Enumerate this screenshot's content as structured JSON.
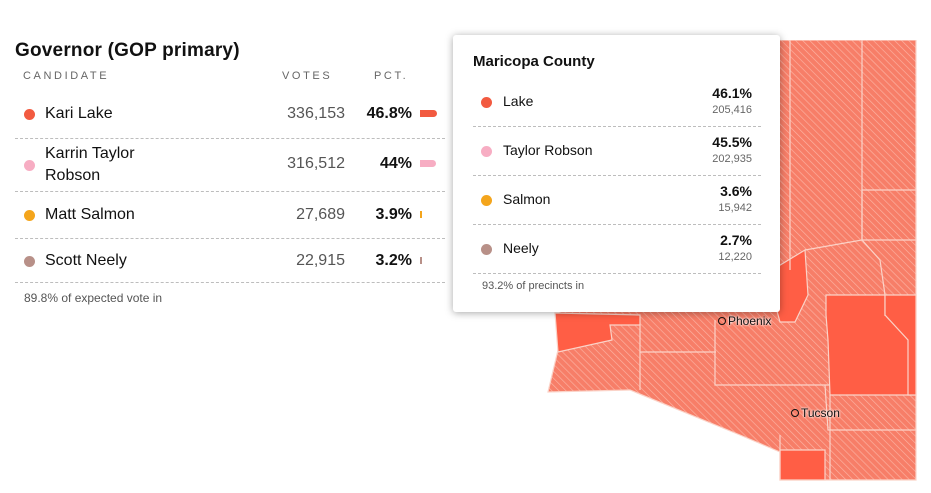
{
  "title": "Governor (GOP primary)",
  "headers": {
    "candidate": "CANDIDATE",
    "votes": "VOTES",
    "pct": "PCT."
  },
  "candidates": [
    {
      "name": "Kari Lake",
      "votes": "336,153",
      "pct": "46.8%",
      "pct_value": 46.8,
      "color": "#f25a40"
    },
    {
      "name": "Karrin Taylor Robson",
      "votes": "316,512",
      "pct": "44%",
      "pct_value": 44,
      "color": "#f7adc3"
    },
    {
      "name": "Matt Salmon",
      "votes": "27,689",
      "pct": "3.9%",
      "pct_value": 3.9,
      "color": "#f4a51c"
    },
    {
      "name": "Scott Neely",
      "votes": "22,915",
      "pct": "3.2%",
      "pct_value": 3.2,
      "color": "#b89088"
    }
  ],
  "footnote": "89.8% of expected vote in",
  "tooltip": {
    "county": "Maricopa County",
    "rows": [
      {
        "name": "Lake",
        "pct": "46.1%",
        "votes": "205,416",
        "color": "#f25a40"
      },
      {
        "name": "Taylor Robson",
        "pct": "45.5%",
        "votes": "202,935",
        "color": "#f7adc3"
      },
      {
        "name": "Salmon",
        "pct": "3.6%",
        "votes": "15,942",
        "color": "#f4a51c"
      },
      {
        "name": "Neely",
        "pct": "2.7%",
        "votes": "12,220",
        "color": "#b89088"
      }
    ],
    "footnote": "93.2% of precincts in"
  },
  "map": {
    "colors": {
      "lake_solid": "#ff5e45",
      "lake_hatch_bg": "#f77e68",
      "border": "#fbd3c8"
    },
    "cities": [
      {
        "name": "Phoenix"
      },
      {
        "name": "Tucson"
      }
    ]
  }
}
